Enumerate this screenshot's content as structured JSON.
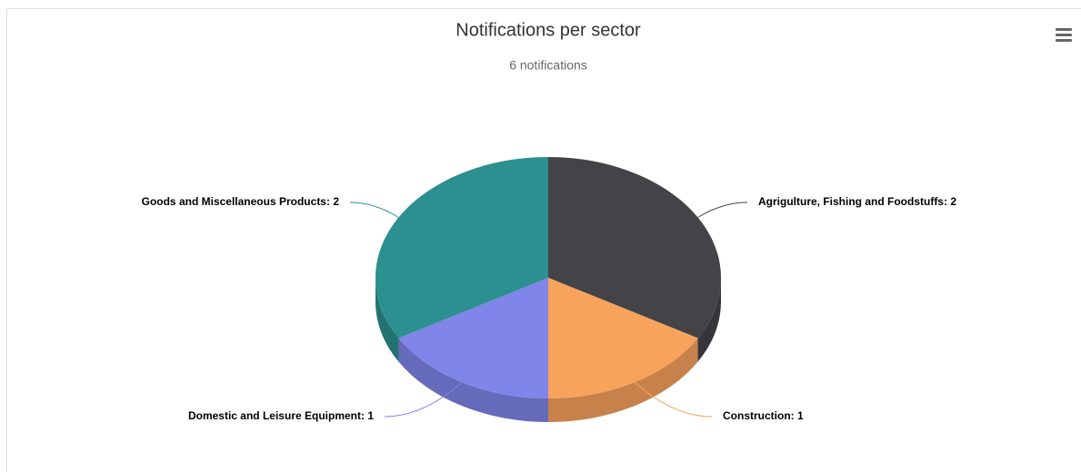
{
  "chart_data": {
    "type": "pie",
    "title": "Notifications per sector",
    "subtitle": "6 notifications",
    "values": [
      2,
      1,
      1,
      2
    ],
    "value_labels": [
      "Agrigulture, Fishing and Foodstuffs: 2",
      "Construction: 1",
      "Domestic and Leisure Equipment: 1",
      "Goods and Miscellaneous Products: 2"
    ],
    "colors": [
      "#434348",
      "#f7a35c",
      "#8085e9",
      "#2b908f"
    ]
  }
}
